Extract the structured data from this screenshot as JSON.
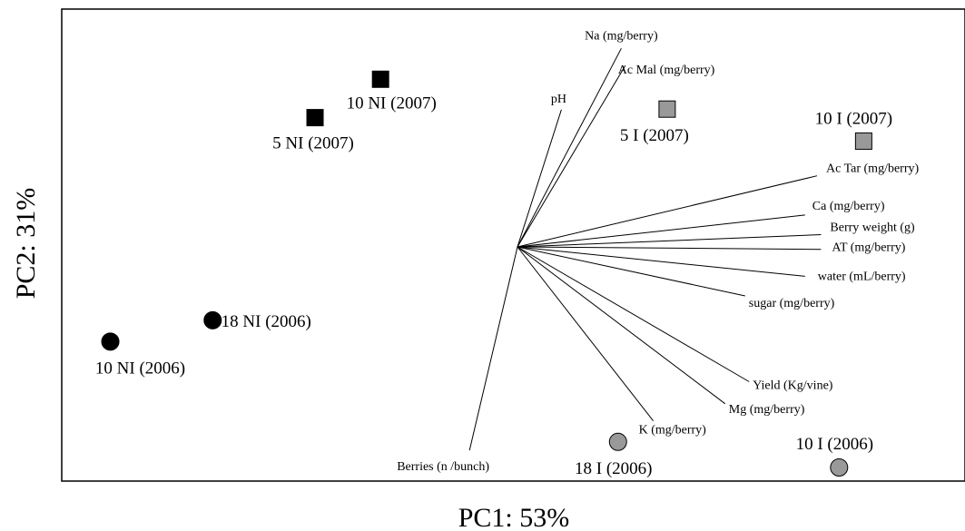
{
  "chart_data": {
    "type": "scatter",
    "subtype": "pca-biplot",
    "title": "",
    "xlabel": "PC1: 53%",
    "ylabel": "PC2: 31%",
    "xlim": [
      -1.0,
      1.0
    ],
    "ylim": [
      -1.0,
      1.0
    ],
    "grid": false,
    "legend": "none",
    "colors": {
      "ni": "#000000",
      "i": "#999999",
      "stroke": "#000000",
      "vector": "#000000"
    },
    "observations": [
      {
        "label": "10 NI (2007)",
        "x": -0.31,
        "y": 0.82,
        "marker": "square",
        "fill": "ni"
      },
      {
        "label": "5 NI (2007)",
        "x": -0.47,
        "y": 0.64,
        "marker": "square",
        "fill": "ni"
      },
      {
        "label": "5 I (2007)",
        "x": 0.39,
        "y": 0.68,
        "marker": "square",
        "fill": "i"
      },
      {
        "label": "10 I (2007)",
        "x": 0.87,
        "y": 0.53,
        "marker": "square",
        "fill": "i"
      },
      {
        "label": "18 NI (2006)",
        "x": -0.72,
        "y": -0.31,
        "marker": "circle",
        "fill": "ni"
      },
      {
        "label": "10 NI (2006)",
        "x": -0.97,
        "y": -0.41,
        "marker": "circle",
        "fill": "ni"
      },
      {
        "label": "18 I (2006)",
        "x": 0.27,
        "y": -0.88,
        "marker": "circle",
        "fill": "i"
      },
      {
        "label": "10 I (2006)",
        "x": 0.81,
        "y": -1.0,
        "marker": "circle",
        "fill": "i"
      }
    ],
    "loadings": [
      {
        "label": "Na (mg/berry)",
        "x": 0.26,
        "y": 0.81
      },
      {
        "label": "Ac Mal (mg/berry)",
        "x": 0.27,
        "y": 0.74
      },
      {
        "label": "pH",
        "x": 0.11,
        "y": 0.56
      },
      {
        "label": "Ac Tar (mg/berry)",
        "x": 0.75,
        "y": 0.29
      },
      {
        "label": "Ca (mg/berry)",
        "x": 0.72,
        "y": 0.13
      },
      {
        "label": "Berry weight (g)",
        "x": 0.76,
        "y": 0.05
      },
      {
        "label": "AT (mg/berry)",
        "x": 0.76,
        "y": -0.01
      },
      {
        "label": "water (mL/berry)",
        "x": 0.72,
        "y": -0.12
      },
      {
        "label": "sugar (mg/berry)",
        "x": 0.57,
        "y": -0.2
      },
      {
        "label": "Yield (Kg/vine)",
        "x": 0.58,
        "y": -0.55
      },
      {
        "label": "Mg (mg/berry)",
        "x": 0.52,
        "y": -0.64
      },
      {
        "label": "K (mg/berry)",
        "x": 0.34,
        "y": -0.71
      },
      {
        "label": "Berries (n /bunch)",
        "x": -0.12,
        "y": -0.83
      }
    ]
  }
}
